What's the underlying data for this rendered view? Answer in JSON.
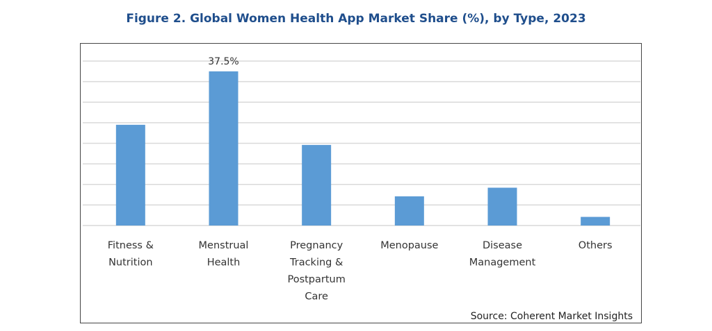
{
  "chart_data": {
    "type": "bar",
    "title": "Figure 2. Global Women Health App Market Share (%), by Type, 2023",
    "categories": [
      [
        "Fitness &",
        "Nutrition"
      ],
      [
        "Menstrual",
        "Health"
      ],
      [
        "Pregnancy",
        "Tracking &",
        "Postpartum",
        "Care"
      ],
      [
        "Menopause"
      ],
      [
        "Disease",
        "Management"
      ],
      [
        "Others"
      ]
    ],
    "values": [
      24.5,
      37.5,
      19.6,
      7.1,
      9.2,
      2.1
    ],
    "data_labels": [
      null,
      "37.5%",
      null,
      null,
      null,
      null
    ],
    "xlabel": "",
    "ylabel": "",
    "ylim": [
      0,
      40
    ],
    "grid_step": 5,
    "grid": true,
    "bar_color": "#5b9bd5",
    "source": "Source: Coherent Market Insights"
  }
}
